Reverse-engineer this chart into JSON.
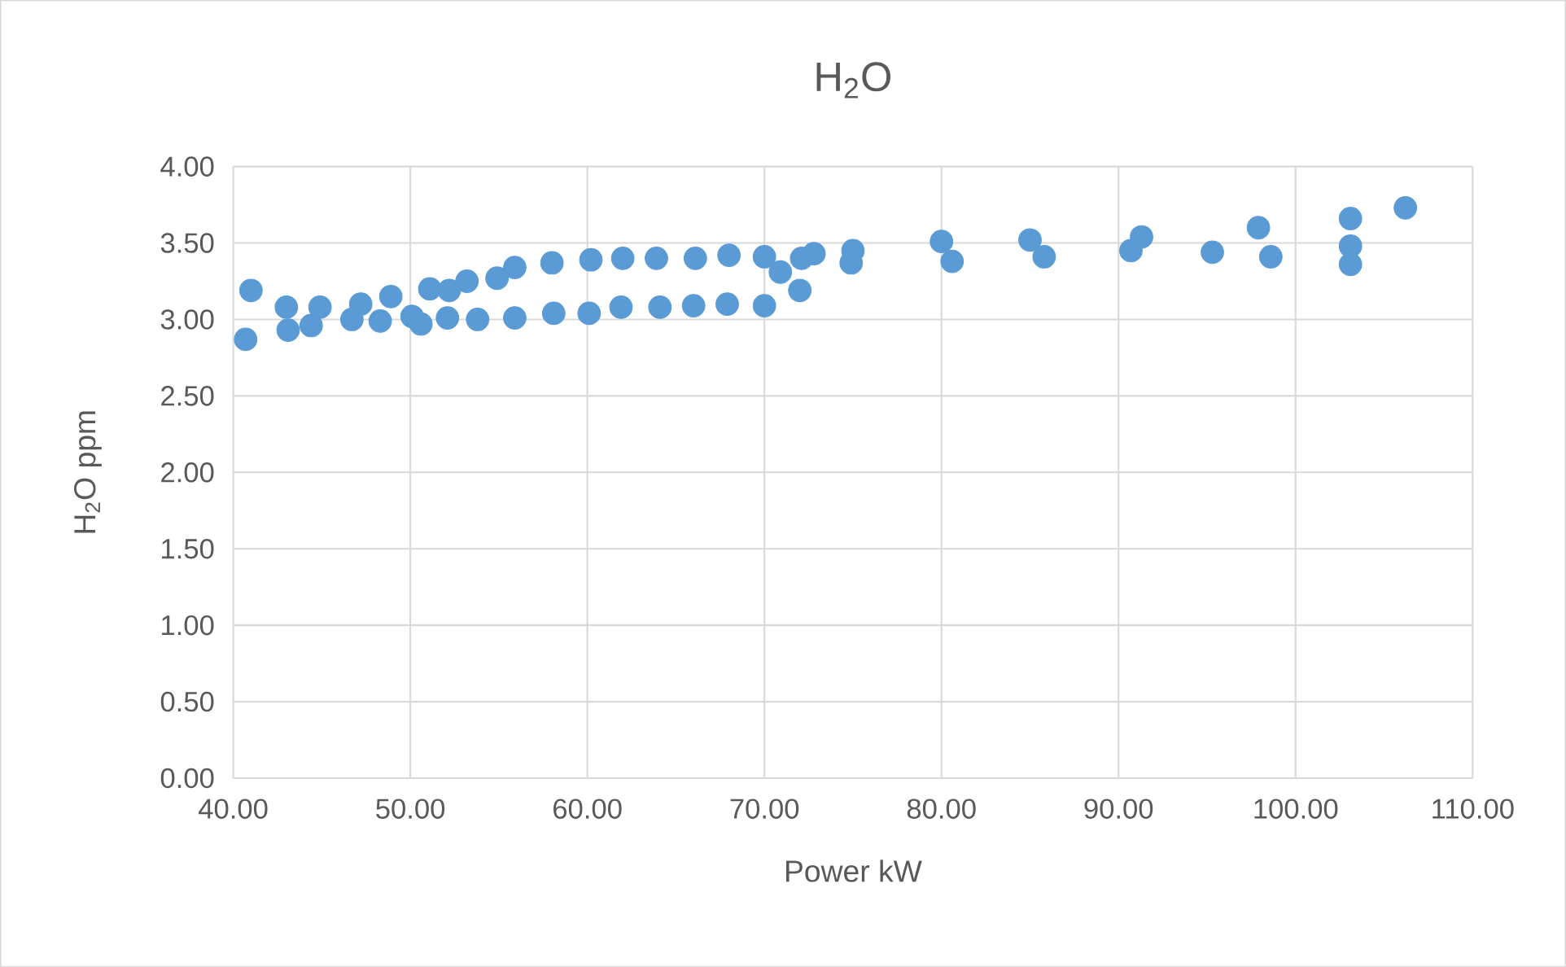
{
  "chart_data": {
    "type": "scatter",
    "title": "H$_{2}$O",
    "xlabel": "Power kW",
    "ylabel": "H$_{2}$O ppm",
    "x": [
      40.7,
      41.0,
      43.0,
      43.1,
      44.4,
      44.9,
      46.7,
      47.2,
      48.3,
      48.9,
      50.1,
      50.6,
      51.1,
      52.1,
      52.2,
      53.2,
      53.8,
      54.9,
      55.9,
      55.9,
      58.0,
      58.1,
      60.2,
      60.1,
      62.0,
      61.9,
      63.9,
      64.1,
      66.1,
      66.0,
      68.0,
      67.9,
      70.0,
      70.0,
      70.9,
      72.0,
      72.1,
      72.8,
      74.9,
      75.0,
      80.0,
      80.6,
      85.0,
      85.8,
      90.7,
      91.3,
      95.3,
      97.9,
      98.6,
      103.1,
      103.1,
      103.1,
      106.2
    ],
    "values": [
      2.87,
      3.19,
      3.08,
      2.93,
      2.96,
      3.08,
      3.0,
      3.1,
      2.99,
      3.15,
      3.02,
      2.97,
      3.2,
      3.01,
      3.19,
      3.25,
      3.0,
      3.27,
      3.34,
      3.01,
      3.37,
      3.04,
      3.39,
      3.04,
      3.4,
      3.08,
      3.4,
      3.08,
      3.4,
      3.09,
      3.42,
      3.1,
      3.41,
      3.09,
      3.31,
      3.19,
      3.4,
      3.43,
      3.37,
      3.45,
      3.51,
      3.38,
      3.52,
      3.41,
      3.45,
      3.54,
      3.44,
      3.6,
      3.41,
      3.66,
      3.48,
      3.36,
      3.73
    ],
    "color": "#5b9bd5",
    "marker": "circle",
    "grid": true,
    "xlim": [
      40,
      110
    ],
    "xticks": [
      {
        "value": 40,
        "label": "40.00"
      },
      {
        "value": 50,
        "label": "50.00"
      },
      {
        "value": 60,
        "label": "60.00"
      },
      {
        "value": 70,
        "label": "70.00"
      },
      {
        "value": 80,
        "label": "80.00"
      },
      {
        "value": 90,
        "label": "90.00"
      },
      {
        "value": 100,
        "label": "100.00"
      },
      {
        "value": 110,
        "label": "110.00"
      }
    ],
    "ylim": [
      0,
      4
    ],
    "yticks": [
      {
        "value": 0,
        "label": "0.00"
      },
      {
        "value": 0.5,
        "label": "0.50"
      },
      {
        "value": 1,
        "label": "1.00"
      },
      {
        "value": 1.5,
        "label": "1.50"
      },
      {
        "value": 2,
        "label": "2.00"
      },
      {
        "value": 2.5,
        "label": "2.50"
      },
      {
        "value": 3,
        "label": "3.00"
      },
      {
        "value": 3.5,
        "label": "3.50"
      },
      {
        "value": 4,
        "label": "4.00"
      }
    ]
  }
}
